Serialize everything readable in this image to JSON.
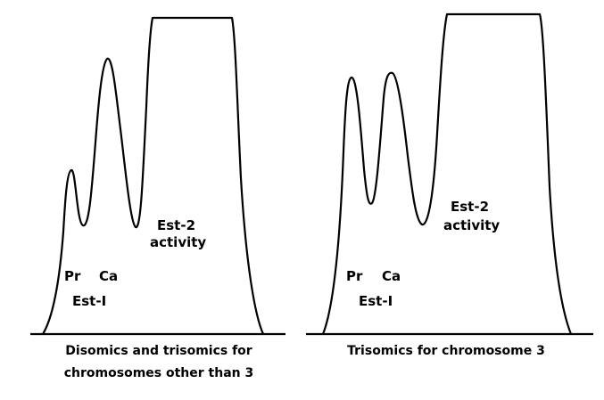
{
  "colors": {
    "ink": "#000000",
    "background": "#ffffff"
  },
  "left_panel": {
    "labels": {
      "pr": "Pr",
      "ca": "Ca",
      "est1": "Est-I",
      "est2_line1": "Est-2",
      "est2_line2": "activity"
    },
    "caption": {
      "line1": "Disomics and trisomics for",
      "line2": "chromosomes other than 3"
    }
  },
  "right_panel": {
    "labels": {
      "pr": "Pr",
      "ca": "Ca",
      "est1": "Est-I",
      "est2_line1": "Est-2",
      "est2_line2": "activity"
    },
    "caption": {
      "line1": "Trisomics for chromosome 3"
    }
  }
}
